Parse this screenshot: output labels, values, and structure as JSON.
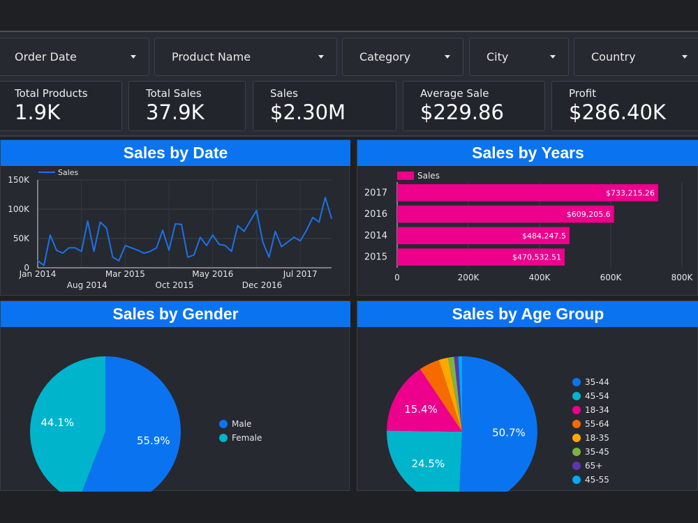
{
  "filters": [
    {
      "label": "Order Date"
    },
    {
      "label": "Product Name"
    },
    {
      "label": "Category"
    },
    {
      "label": "City"
    },
    {
      "label": "Country"
    }
  ],
  "kpis": [
    {
      "label": "Total Products",
      "value": "1.9K"
    },
    {
      "label": "Total Sales",
      "value": "37.9K"
    },
    {
      "label": "Sales",
      "value": "$2.30M"
    },
    {
      "label": "Average Sale",
      "value": "$229.86"
    },
    {
      "label": "Profit",
      "value": "$286.40K"
    }
  ],
  "colors": {
    "header": "#0a74f0",
    "line": "#1a73e8",
    "bar": "#ec008c",
    "male": "#0a74f0",
    "female": "#00b4cc"
  },
  "chart_data": [
    {
      "type": "line",
      "title": "Sales by Date",
      "legend": "Sales",
      "ylim": [
        0,
        150000
      ],
      "yticks": [
        {
          "v": 0,
          "label": "0"
        },
        {
          "v": 50000,
          "label": "50K"
        },
        {
          "v": 100000,
          "label": "100K"
        },
        {
          "v": 150000,
          "label": "150K"
        }
      ],
      "xticks_row1": [
        {
          "i": 0,
          "label": "Jan 2014"
        },
        {
          "i": 14,
          "label": "Mar 2015"
        },
        {
          "i": 28,
          "label": "May 2016"
        },
        {
          "i": 42,
          "label": "Jul 2017"
        }
      ],
      "xticks_row2": [
        {
          "i": 7,
          "label": "Aug 2014"
        },
        {
          "i": 21,
          "label": "Oct 2015"
        },
        {
          "i": 35,
          "label": "Dec 2016"
        }
      ],
      "values": [
        12000,
        4000,
        56000,
        30000,
        25000,
        34000,
        34000,
        28000,
        80000,
        28000,
        78000,
        68000,
        18000,
        12000,
        38000,
        34000,
        30000,
        25000,
        28000,
        34000,
        64000,
        30000,
        75000,
        74000,
        18000,
        22000,
        52000,
        38000,
        56000,
        40000,
        38000,
        28000,
        72000,
        62000,
        80000,
        98000,
        44000,
        18000,
        62000,
        36000,
        44000,
        52000,
        46000,
        64000,
        86000,
        78000,
        120000,
        84000
      ]
    },
    {
      "type": "bar",
      "title": "Sales by Years",
      "legend": "Sales",
      "categories": [
        "2017",
        "2016",
        "2014",
        "2015"
      ],
      "values": [
        733215.26,
        609205.6,
        484247.5,
        470532.51
      ],
      "labels": [
        "$733,215.26",
        "$609,205.6",
        "$484,247.5",
        "$470,532.51"
      ],
      "xlim": [
        0,
        800000
      ],
      "xticks": [
        {
          "v": 0,
          "label": "0"
        },
        {
          "v": 200000,
          "label": "200K"
        },
        {
          "v": 400000,
          "label": "400K"
        },
        {
          "v": 600000,
          "label": "600K"
        },
        {
          "v": 800000,
          "label": "800K"
        }
      ]
    },
    {
      "type": "pie",
      "title": "Sales by Gender",
      "slices": [
        {
          "name": "Male",
          "value": 55.9,
          "label": "55.9%",
          "color": "#0a74f0"
        },
        {
          "name": "Female",
          "value": 44.1,
          "label": "44.1%",
          "color": "#00b4cc"
        }
      ]
    },
    {
      "type": "pie",
      "title": "Sales by Age Group",
      "slices": [
        {
          "name": "35-44",
          "value": 50.7,
          "label": "50.7%",
          "color": "#0a74f0"
        },
        {
          "name": "45-54",
          "value": 24.5,
          "label": "24.5%",
          "color": "#00b4cc"
        },
        {
          "name": "18-34",
          "value": 15.4,
          "label": "15.4%",
          "color": "#ec008c"
        },
        {
          "name": "55-64",
          "value": 4.4,
          "label": "",
          "color": "#f56b00"
        },
        {
          "name": "18-35",
          "value": 2.0,
          "label": "",
          "color": "#ffa800"
        },
        {
          "name": "35-45",
          "value": 1.3,
          "label": "",
          "color": "#7cb342"
        },
        {
          "name": "65+",
          "value": 0.9,
          "label": "",
          "color": "#5e35b1"
        },
        {
          "name": "45-55",
          "value": 0.8,
          "label": "",
          "color": "#03a9f4"
        }
      ]
    }
  ]
}
